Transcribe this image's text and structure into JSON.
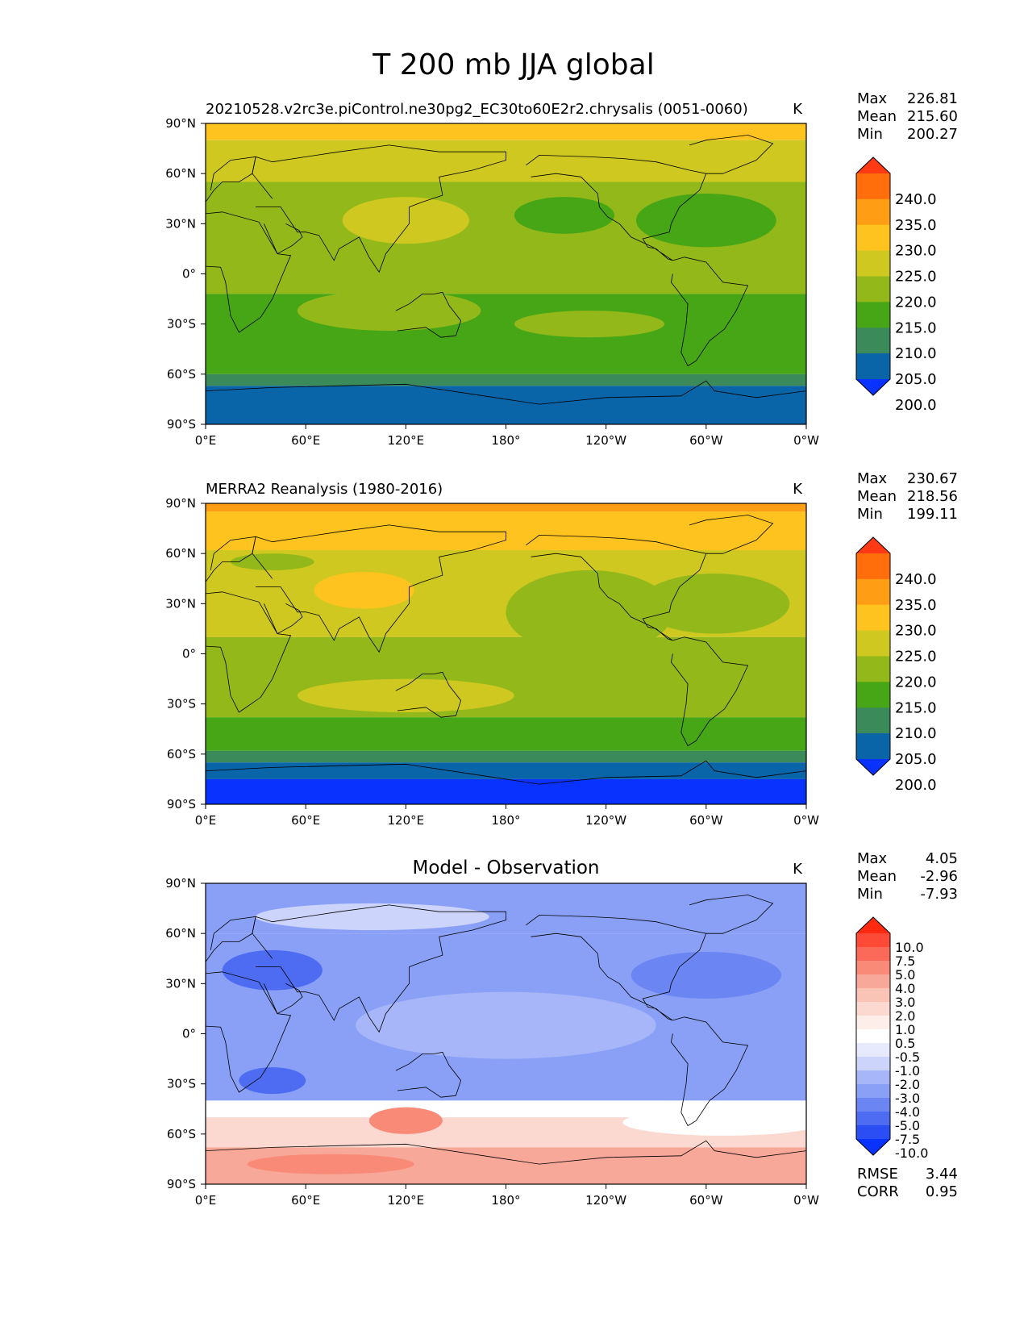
{
  "figure_title": "T 200 mb JJA global",
  "axes": {
    "lat_labels": [
      "90°N",
      "60°N",
      "30°N",
      "0°",
      "30°S",
      "60°S",
      "90°S"
    ],
    "lon_labels": [
      "0°E",
      "60°E",
      "120°E",
      "180°",
      "120°W",
      "60°W",
      "0°W"
    ]
  },
  "panels": [
    {
      "name": "model",
      "title_left": "20210528.v2rc3e.piControl.ne30pg2_EC30to60E2r2.chrysalis (0051-0060)",
      "title_center": "",
      "units": "K",
      "stats": [
        {
          "label": "Max",
          "value": "226.81"
        },
        {
          "label": "Mean",
          "value": "215.60"
        },
        {
          "label": "Min",
          "value": "200.27"
        }
      ],
      "colorbar": {
        "labels": [
          "240.0",
          "235.0",
          "230.0",
          "225.0",
          "220.0",
          "215.0",
          "210.0",
          "205.0",
          "200.0"
        ],
        "colors": [
          "#ff3a14",
          "#ff6e0a",
          "#ff9e14",
          "#fec31e",
          "#cec820",
          "#93b81a",
          "#46a615",
          "#3b8a5a",
          "#0a64a8",
          "#0a32ff"
        ]
      },
      "bands": [
        {
          "lat_top": 90,
          "lat_bottom": 80,
          "color": "#fec31e"
        },
        {
          "lat_top": 80,
          "lat_bottom": 55,
          "color": "#cec820"
        },
        {
          "lat_top": 55,
          "lat_bottom": -12,
          "color": "#93b81a"
        },
        {
          "lat_top": -12,
          "lat_bottom": -60,
          "color": "#46a615"
        },
        {
          "lat_top": -60,
          "lat_bottom": -67,
          "color": "#3b8a5a"
        },
        {
          "lat_top": -67,
          "lat_bottom": -90,
          "color": "#0a64a8"
        }
      ],
      "blobs": [
        {
          "lon": 120,
          "lat": 32,
          "rx": 38,
          "ry": 14,
          "color": "#cec820"
        },
        {
          "lon": 215,
          "lat": 35,
          "rx": 30,
          "ry": 11,
          "color": "#46a615"
        },
        {
          "lon": 300,
          "lat": 32,
          "rx": 42,
          "ry": 16,
          "color": "#46a615"
        },
        {
          "lon": 110,
          "lat": -22,
          "rx": 55,
          "ry": 12,
          "color": "#93b81a"
        },
        {
          "lon": 230,
          "lat": -30,
          "rx": 45,
          "ry": 8,
          "color": "#93b81a"
        }
      ]
    },
    {
      "name": "observation",
      "title_left": "MERRA2 Reanalysis (1980-2016)",
      "title_center": "",
      "units": "K",
      "stats": [
        {
          "label": "Max",
          "value": "230.67"
        },
        {
          "label": "Mean",
          "value": "218.56"
        },
        {
          "label": "Min",
          "value": "199.11"
        }
      ],
      "colorbar": {
        "labels": [
          "240.0",
          "235.0",
          "230.0",
          "225.0",
          "220.0",
          "215.0",
          "210.0",
          "205.0",
          "200.0"
        ],
        "colors": [
          "#ff3a14",
          "#ff6e0a",
          "#ff9e14",
          "#fec31e",
          "#cec820",
          "#93b81a",
          "#46a615",
          "#3b8a5a",
          "#0a64a8",
          "#0a32ff"
        ]
      },
      "bands": [
        {
          "lat_top": 90,
          "lat_bottom": 85,
          "color": "#ff9e14"
        },
        {
          "lat_top": 85,
          "lat_bottom": 62,
          "color": "#fec31e"
        },
        {
          "lat_top": 62,
          "lat_bottom": 10,
          "color": "#cec820"
        },
        {
          "lat_top": 10,
          "lat_bottom": -38,
          "color": "#93b81a"
        },
        {
          "lat_top": -38,
          "lat_bottom": -58,
          "color": "#46a615"
        },
        {
          "lat_top": -58,
          "lat_bottom": -65,
          "color": "#3b8a5a"
        },
        {
          "lat_top": -65,
          "lat_bottom": -75,
          "color": "#0a64a8"
        },
        {
          "lat_top": -75,
          "lat_bottom": -90,
          "color": "#0a32ff"
        }
      ],
      "blobs": [
        {
          "lon": 230,
          "lat": 25,
          "rx": 50,
          "ry": 25,
          "color": "#93b81a"
        },
        {
          "lon": 305,
          "lat": 30,
          "rx": 45,
          "ry": 18,
          "color": "#93b81a"
        },
        {
          "lon": 95,
          "lat": 38,
          "rx": 30,
          "ry": 11,
          "color": "#fec31e"
        },
        {
          "lon": 120,
          "lat": -25,
          "rx": 65,
          "ry": 10,
          "color": "#cec820"
        },
        {
          "lon": 40,
          "lat": 55,
          "rx": 25,
          "ry": 5,
          "color": "#93b81a"
        }
      ]
    },
    {
      "name": "difference",
      "title_left": "",
      "title_center": "Model - Observation",
      "units": "K",
      "stats": [
        {
          "label": "Max",
          "value": "4.05"
        },
        {
          "label": "Mean",
          "value": "-2.96"
        },
        {
          "label": "Min",
          "value": "-7.93"
        }
      ],
      "colorbar": {
        "labels": [
          "10.0",
          "7.5",
          "5.0",
          "4.0",
          "3.0",
          "2.0",
          "1.0",
          "0.5",
          "-0.5",
          "-1.0",
          "-2.0",
          "-3.0",
          "-4.0",
          "-5.0",
          "-7.5",
          "-10.0"
        ],
        "colors": [
          "#ff2a10",
          "#fd4a36",
          "#fb6a58",
          "#f98a78",
          "#f8a898",
          "#f9c3b6",
          "#fbd9d0",
          "#fdeeea",
          "#ffffff",
          "#e6eafc",
          "#ccd4fb",
          "#a7b6f8",
          "#8aa0f6",
          "#6b86f3",
          "#4d6cf1",
          "#2b4ef4",
          "#0a32ff"
        ]
      },
      "rmse_label": "RMSE",
      "rmse_value": "3.44",
      "corr_label": "CORR",
      "corr_value": "0.95",
      "bands": [
        {
          "lat_top": 90,
          "lat_bottom": 60,
          "color": "#8aa0f6"
        },
        {
          "lat_top": 60,
          "lat_bottom": -40,
          "color": "#8aa0f6"
        },
        {
          "lat_top": -40,
          "lat_bottom": -50,
          "color": "#ffffff"
        },
        {
          "lat_top": -50,
          "lat_bottom": -68,
          "color": "#fbd9d0"
        },
        {
          "lat_top": -68,
          "lat_bottom": -90,
          "color": "#f8a898"
        }
      ],
      "blobs": [
        {
          "lon": 100,
          "lat": 70,
          "rx": 70,
          "ry": 8,
          "color": "#ccd4fb"
        },
        {
          "lon": 40,
          "lat": 38,
          "rx": 30,
          "ry": 12,
          "color": "#4d6cf1"
        },
        {
          "lon": 300,
          "lat": 35,
          "rx": 45,
          "ry": 14,
          "color": "#6b86f3"
        },
        {
          "lon": 180,
          "lat": 5,
          "rx": 90,
          "ry": 20,
          "color": "#a7b6f8"
        },
        {
          "lon": 40,
          "lat": -28,
          "rx": 20,
          "ry": 8,
          "color": "#4d6cf1"
        },
        {
          "lon": 120,
          "lat": -52,
          "rx": 22,
          "ry": 8,
          "color": "#f98a78"
        },
        {
          "lon": 75,
          "lat": -78,
          "rx": 50,
          "ry": 6,
          "color": "#f98a78"
        },
        {
          "lon": 310,
          "lat": -53,
          "rx": 60,
          "ry": 8,
          "color": "#ffffff"
        }
      ]
    }
  ]
}
